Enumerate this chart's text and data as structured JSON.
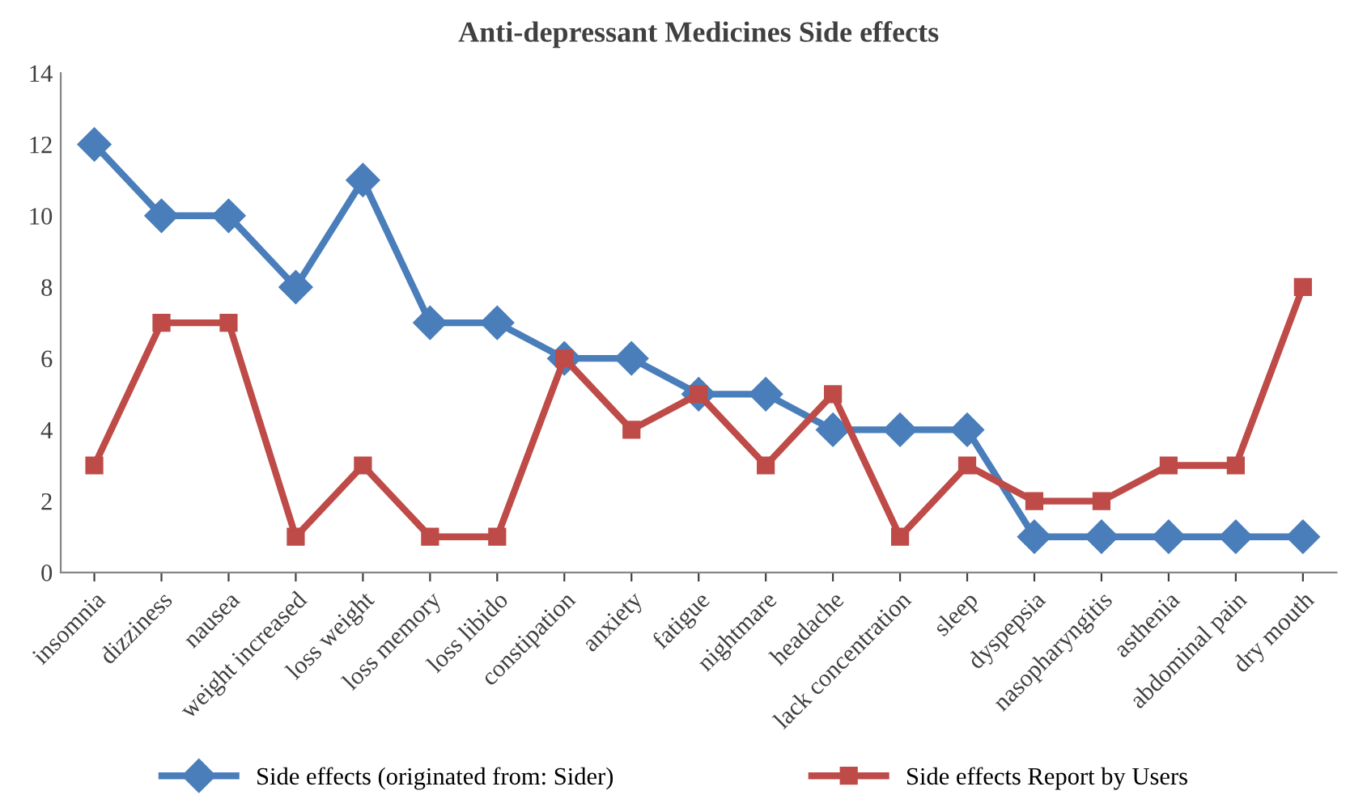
{
  "chart_data": {
    "type": "line",
    "title": "Anti-depressant Medicines Side effects",
    "categories": [
      "insomnia",
      "dizziness",
      "nausea",
      "weight increased",
      "loss weight",
      "loss memory",
      "loss libido",
      "constipation",
      "anxiety",
      "fatigue",
      "nightmare",
      "headache",
      "lack concentration",
      "sleep",
      "dyspepsia",
      "nasopharyngitis",
      "asthenia",
      "abdominal pain",
      "dry mouth"
    ],
    "series": [
      {
        "name": "Side effects (originated from: Sider)",
        "color": "#4a7ebb",
        "marker": "diamond",
        "values": [
          12,
          10,
          10,
          8,
          11,
          7,
          7,
          6,
          6,
          5,
          5,
          4,
          4,
          4,
          1,
          1,
          1,
          1,
          1
        ]
      },
      {
        "name": "Side effects Report by Users",
        "color": "#be4b48",
        "marker": "square",
        "values": [
          3,
          7,
          7,
          1,
          3,
          1,
          1,
          6,
          4,
          5,
          3,
          5,
          1,
          3,
          2,
          2,
          3,
          3,
          8
        ]
      }
    ],
    "ylim": [
      0,
      14
    ],
    "yticks": [
      0,
      2,
      4,
      6,
      8,
      10,
      12,
      14
    ],
    "grid": false,
    "legend": "bottom",
    "line_style": "solid"
  }
}
